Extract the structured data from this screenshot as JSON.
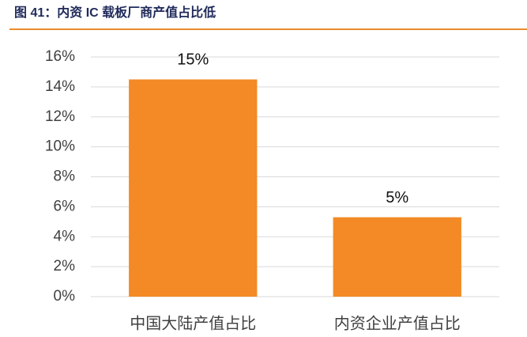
{
  "chart_data": {
    "type": "bar",
    "title": "图 41：内资 IC 载板厂商产值占比低",
    "categories": [
      "中国大陆产值占比",
      "内资企业产值占比"
    ],
    "values": [
      14.5,
      5.3
    ],
    "value_labels": [
      "15%",
      "5%"
    ],
    "color": "#f38a26",
    "ylim": [
      0,
      16
    ],
    "yticks": [
      {
        "value": 0,
        "label": "0%"
      },
      {
        "value": 2,
        "label": "2%"
      },
      {
        "value": 4,
        "label": "4%"
      },
      {
        "value": 6,
        "label": "6%"
      },
      {
        "value": 8,
        "label": "8%"
      },
      {
        "value": 10,
        "label": "10%"
      },
      {
        "value": 12,
        "label": "12%"
      },
      {
        "value": 14,
        "label": "14%"
      },
      {
        "value": 16,
        "label": "16%"
      }
    ],
    "grid": true
  }
}
